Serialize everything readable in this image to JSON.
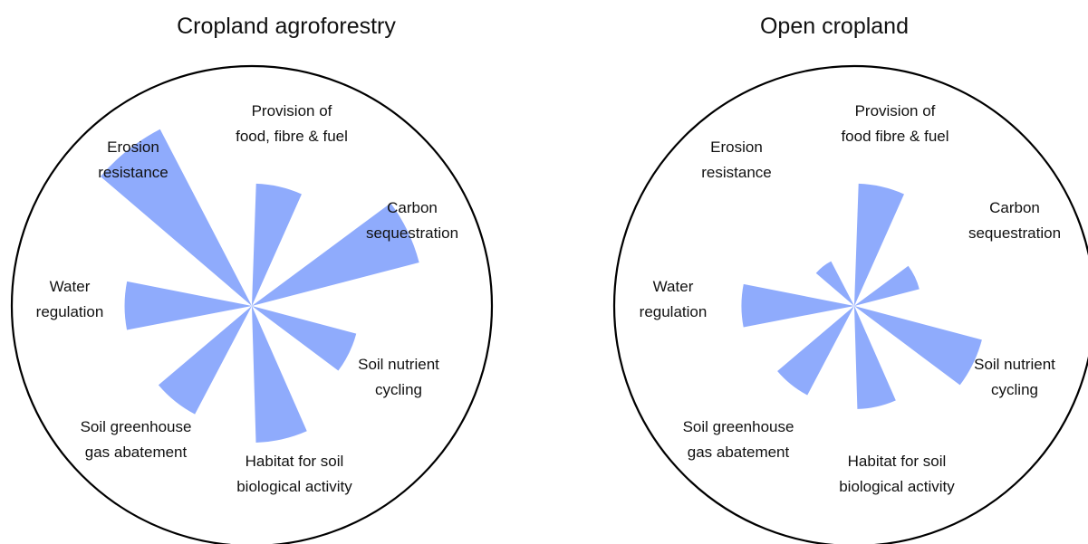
{
  "chart_data": [
    {
      "type": "rose",
      "title": "Cropland agroforestry",
      "color": "#8fabfc",
      "categories": [
        [
          "Provision of",
          "food, fibre & fuel"
        ],
        [
          "Carbon",
          "sequestration"
        ],
        [
          "Soil nutrient",
          "cycling"
        ],
        [
          "Habitat for soil",
          "biological activity"
        ],
        [
          "Soil greenhouse",
          "gas abatement"
        ],
        [
          "Water",
          "regulation"
        ],
        [
          "Erosion",
          "resistance"
        ]
      ],
      "values": [
        5.1,
        7.2,
        4.5,
        5.7,
        5.1,
        5.3,
        8.3
      ],
      "rlim": [
        0,
        10
      ]
    },
    {
      "type": "rose",
      "title": "Open cropland",
      "color": "#8fabfc",
      "categories": [
        [
          "Provision of",
          "food fibre & fuel"
        ],
        [
          "Carbon",
          "sequestration"
        ],
        [
          "Soil nutrient",
          "cycling"
        ],
        [
          "Habitat for soil",
          "biological activity"
        ],
        [
          "Soil greenhouse",
          "gas abatement"
        ],
        [
          "Water",
          "regulation"
        ],
        [
          "Erosion",
          "resistance"
        ]
      ],
      "values": [
        5.1,
        2.8,
        5.5,
        4.3,
        4.2,
        4.7,
        2.1
      ],
      "rlim": [
        0,
        10
      ]
    }
  ]
}
